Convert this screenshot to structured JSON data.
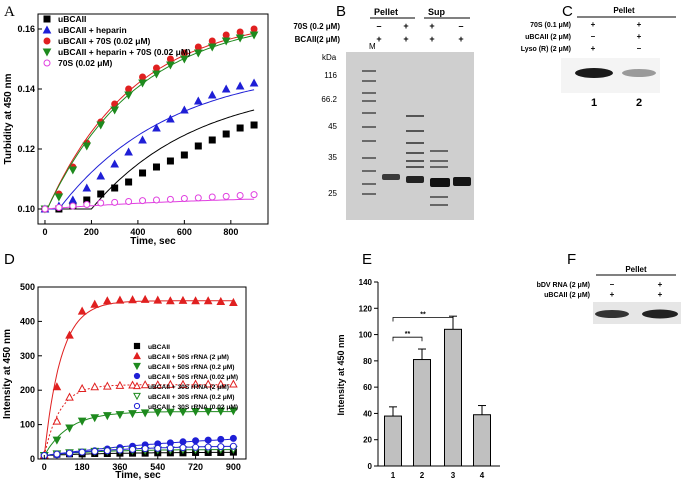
{
  "panels": {
    "A": "A",
    "B": "B",
    "C": "C",
    "D": "D",
    "E": "E",
    "F": "F"
  },
  "chart_data": [
    {
      "id": "A",
      "type": "scatter",
      "xlabel": "Time, sec",
      "ylabel": "Turbidity at 450 nm",
      "xlim": [
        -30,
        960
      ],
      "ylim": [
        0.095,
        0.165
      ],
      "xticks": [
        0,
        200,
        400,
        600,
        800
      ],
      "yticks": [
        0.1,
        0.12,
        0.14,
        0.16
      ],
      "ytick_labels": [
        "0.10",
        "0.12",
        "0.14",
        "0.16"
      ],
      "series": [
        {
          "name": "uBCAII",
          "marker": "square",
          "color": "#000000",
          "filled": true,
          "x": [
            0,
            60,
            120,
            180,
            240,
            300,
            360,
            420,
            480,
            540,
            600,
            660,
            720,
            780,
            840,
            900
          ],
          "y": [
            0.1,
            0.1,
            0.101,
            0.103,
            0.105,
            0.107,
            0.109,
            0.112,
            0.114,
            0.116,
            0.118,
            0.121,
            0.123,
            0.125,
            0.127,
            0.128
          ],
          "fit": {
            "A": 0.042,
            "k": 0.0022,
            "d": 200
          }
        },
        {
          "name": "uBCAII + heparin",
          "marker": "triangle-up",
          "color": "#1f1fd6",
          "filled": true,
          "x": [
            0,
            60,
            120,
            180,
            240,
            300,
            360,
            420,
            480,
            540,
            600,
            660,
            720,
            780,
            840,
            900
          ],
          "y": [
            0.1,
            0.101,
            0.103,
            0.107,
            0.111,
            0.115,
            0.119,
            0.123,
            0.127,
            0.13,
            0.133,
            0.136,
            0.138,
            0.14,
            0.141,
            0.142
          ],
          "fit": {
            "A": 0.048,
            "k": 0.0021,
            "d": 60
          }
        },
        {
          "name": "uBCAII + 70S (0.02 μM)",
          "marker": "circle",
          "color": "#e02020",
          "filled": true,
          "x": [
            0,
            60,
            120,
            180,
            240,
            300,
            360,
            420,
            480,
            540,
            600,
            660,
            720,
            780,
            840,
            900
          ],
          "y": [
            0.1,
            0.105,
            0.114,
            0.122,
            0.129,
            0.135,
            0.14,
            0.144,
            0.147,
            0.15,
            0.152,
            0.154,
            0.156,
            0.158,
            0.159,
            0.16
          ],
          "fit": {
            "A": 0.0645,
            "k": 0.00268,
            "d": 10
          }
        },
        {
          "name": "uBCAII + heparin + 70S (0.02 μM)",
          "marker": "triangle-down",
          "color": "#1e8a1e",
          "filled": true,
          "x": [
            0,
            60,
            120,
            180,
            240,
            300,
            360,
            420,
            480,
            540,
            600,
            660,
            720,
            780,
            840,
            900
          ],
          "y": [
            0.1,
            0.104,
            0.113,
            0.121,
            0.128,
            0.133,
            0.138,
            0.142,
            0.145,
            0.148,
            0.15,
            0.152,
            0.154,
            0.156,
            0.157,
            0.158
          ],
          "fit": {
            "A": 0.0645,
            "k": 0.00255,
            "d": 10
          }
        },
        {
          "name": "70S (0.02 μM)",
          "marker": "circle",
          "color": "#e040e0",
          "filled": false,
          "x": [
            0,
            60,
            120,
            180,
            240,
            300,
            360,
            420,
            480,
            540,
            600,
            660,
            720,
            780,
            840,
            900
          ],
          "y": [
            0.1,
            0.1005,
            0.101,
            0.1015,
            0.102,
            0.1022,
            0.1025,
            0.1028,
            0.103,
            0.1032,
            0.1035,
            0.1037,
            0.104,
            0.1042,
            0.1045,
            0.1048
          ],
          "fit": {
            "A": 0.005,
            "k": 0.0012,
            "d": 0
          }
        }
      ]
    },
    {
      "id": "D",
      "type": "scatter",
      "xlabel": "Time, sec",
      "ylabel": "Intensity at 450 nm",
      "xlim": [
        -30,
        960
      ],
      "ylim": [
        0,
        500
      ],
      "xticks": [
        0,
        180,
        360,
        540,
        720,
        900
      ],
      "yticks": [
        0,
        100,
        200,
        300,
        400,
        500
      ],
      "series": [
        {
          "name": "uBCAII",
          "marker": "square",
          "color": "#000000",
          "filled": true,
          "fitStyle": "solid",
          "x": [
            0,
            60,
            120,
            180,
            240,
            300,
            360,
            420,
            480,
            540,
            600,
            660,
            720,
            780,
            840,
            900
          ],
          "y": [
            10,
            14,
            15,
            15,
            16,
            16,
            17,
            17,
            17,
            18,
            18,
            18,
            19,
            19,
            19,
            20
          ],
          "fit": {
            "A": 20,
            "k": 0.003
          }
        },
        {
          "name": "uBCAII + 50S rRNA (2 μM)",
          "marker": "triangle-up",
          "color": "#e02020",
          "filled": true,
          "fitStyle": "solid",
          "x": [
            0,
            60,
            120,
            180,
            240,
            300,
            360,
            420,
            480,
            540,
            600,
            660,
            720,
            780,
            840,
            900
          ],
          "y": [
            12,
            210,
            360,
            430,
            450,
            460,
            462,
            463,
            464,
            462,
            460,
            461,
            460,
            460,
            458,
            455
          ],
          "fit": {
            "A": 460,
            "k": 0.0125
          }
        },
        {
          "name": "uBCAII + 50S rRNA (0.2 μM)",
          "marker": "triangle-down",
          "color": "#1e8a1e",
          "filled": true,
          "fitStyle": "solid",
          "x": [
            0,
            60,
            120,
            180,
            240,
            300,
            360,
            420,
            480,
            540,
            600,
            660,
            720,
            780,
            840,
            900
          ],
          "y": [
            10,
            55,
            90,
            110,
            120,
            126,
            129,
            132,
            134,
            135,
            136,
            137,
            138,
            138,
            139,
            140
          ],
          "fit": {
            "A": 138,
            "k": 0.0085
          }
        },
        {
          "name": "uBCAII + 50S rRNA (0.02 μM)",
          "marker": "circle",
          "color": "#1f1fd6",
          "filled": true,
          "fitStyle": "solid",
          "x": [
            0,
            60,
            120,
            180,
            240,
            300,
            360,
            420,
            480,
            540,
            600,
            660,
            720,
            780,
            840,
            900
          ],
          "y": [
            10,
            12,
            15,
            20,
            24,
            29,
            33,
            37,
            41,
            44,
            47,
            50,
            53,
            55,
            57,
            60
          ],
          "fit": {
            "A": 82,
            "k": 0.0012
          }
        },
        {
          "name": "uBCAII + 30S rRNA (2 μM)",
          "marker": "triangle-up",
          "color": "#e02020",
          "filled": false,
          "fitStyle": "dotted",
          "x": [
            0,
            60,
            120,
            180,
            240,
            300,
            360,
            420,
            480,
            540,
            600,
            660,
            720,
            780,
            840,
            900
          ],
          "y": [
            12,
            110,
            180,
            205,
            210,
            212,
            214,
            215,
            216,
            216,
            217,
            217,
            218,
            218,
            218,
            218
          ],
          "fit": {
            "A": 216,
            "k": 0.0135
          }
        },
        {
          "name": "uBCAII + 30S rRNA (0.2 μM)",
          "marker": "triangle-down",
          "color": "#1e8a1e",
          "filled": false,
          "fitStyle": "solid",
          "x": [
            0,
            60,
            120,
            180,
            240,
            300,
            360,
            420,
            480,
            540,
            600,
            660,
            720,
            780,
            840,
            900
          ],
          "y": [
            10,
            15,
            18,
            20,
            22,
            23,
            24,
            25,
            25,
            26,
            26,
            27,
            27,
            28,
            28,
            28
          ],
          "fit": {
            "A": 28,
            "k": 0.004
          }
        },
        {
          "name": "uBCAII + 30S rRNA (0.02 μM)",
          "marker": "circle",
          "color": "#1f1fd6",
          "filled": false,
          "fitStyle": "solid",
          "x": [
            0,
            60,
            120,
            180,
            240,
            300,
            360,
            420,
            480,
            540,
            600,
            660,
            720,
            780,
            840,
            900
          ],
          "y": [
            10,
            14,
            17,
            20,
            22,
            24,
            26,
            28,
            30,
            31,
            32,
            33,
            34,
            35,
            36,
            37
          ],
          "fit": {
            "A": 40,
            "k": 0.0025
          }
        }
      ]
    },
    {
      "id": "E",
      "type": "bar",
      "xlabel": "",
      "ylabel": "Intensity at 450 nm",
      "categories": [
        "1",
        "2",
        "3",
        "4"
      ],
      "values": [
        38,
        81,
        104,
        39
      ],
      "errors": [
        7,
        8,
        10,
        7
      ],
      "ylim": [
        0,
        140
      ],
      "yticks": [
        0,
        20,
        40,
        60,
        80,
        100,
        120,
        140
      ],
      "bar_color": "#c0c0c0",
      "significance": [
        {
          "from": 0,
          "to": 1,
          "label": "**"
        },
        {
          "from": 0,
          "to": 2,
          "label": "**"
        }
      ]
    }
  ],
  "gelB": {
    "row1_label": "70S (0.2 μM)",
    "row2_label": "BCAII(2 μM)",
    "group_pellet": "Pellet",
    "group_sup": "Sup",
    "row1_signs": [
      "–",
      "+",
      "+",
      "–"
    ],
    "row2_signs": [
      "+",
      "+",
      "+",
      "+"
    ],
    "marker_lane": "M",
    "kda_label": "kDa",
    "mw_ladder": [
      "116",
      "66.2",
      "45",
      "35",
      "25"
    ]
  },
  "gelC": {
    "group_label": "Pellet",
    "row1_label": "70S (0.1 μM)",
    "row2_label": "uBCAII (2 μM)",
    "row3_label": "Lyso (R) (2 μM)",
    "row1_signs": [
      "+",
      "+"
    ],
    "row2_signs": [
      "–",
      "+"
    ],
    "row3_signs": [
      "+",
      "–"
    ],
    "lane_numbers": [
      "1",
      "2"
    ]
  },
  "gelF": {
    "group_label": "Pellet",
    "row1_label": "bDV RNA (2 μM)",
    "row2_label": "uBCAII (2 μM)",
    "row1_signs": [
      "–",
      "+"
    ],
    "row2_signs": [
      "+",
      "+"
    ]
  }
}
